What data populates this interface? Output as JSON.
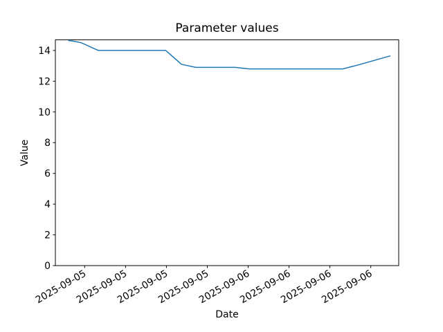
{
  "figure": {
    "background_color": "#ffffff",
    "frame_color": "#000000",
    "text_color": "#000000"
  },
  "chart_data": {
    "type": "line",
    "title": "Parameter values",
    "xlabel": "Date",
    "ylabel": "Value",
    "grid": false,
    "legend": null,
    "x_axis": {
      "epoch": "2025-09-05 00:00",
      "lim_hours": [
        -4.3,
        46.1
      ],
      "ticks": [
        {
          "hour": 0,
          "label": "2025-09-05"
        },
        {
          "hour": 6,
          "label": "2025-09-05"
        },
        {
          "hour": 12,
          "label": "2025-09-05"
        },
        {
          "hour": 18,
          "label": "2025-09-05"
        },
        {
          "hour": 24,
          "label": "2025-09-06"
        },
        {
          "hour": 30,
          "label": "2025-09-06"
        },
        {
          "hour": 36,
          "label": "2025-09-06"
        },
        {
          "hour": 42,
          "label": "2025-09-06"
        }
      ],
      "tick_label_rotation_deg": 30
    },
    "y_axis": {
      "lim": [
        0,
        14.69
      ],
      "ticks": [
        0,
        2,
        4,
        6,
        8,
        10,
        12,
        14
      ]
    },
    "series": [
      {
        "color": "#1f77b4",
        "line_width": 1.5,
        "points": [
          {
            "t_hours": -2.4,
            "time": "2025-09-04 21:36",
            "value": 14.65
          },
          {
            "t_hours": -1.6,
            "time": "2025-09-04 22:24",
            "value": 14.6
          },
          {
            "t_hours": -0.5,
            "time": "2025-09-04 23:30",
            "value": 14.5
          },
          {
            "t_hours": 2.0,
            "time": "2025-09-05 02:00",
            "value": 14.0
          },
          {
            "t_hours": 11.9,
            "time": "2025-09-05 11:54",
            "value": 14.0
          },
          {
            "t_hours": 14.2,
            "time": "2025-09-05 14:12",
            "value": 13.1
          },
          {
            "t_hours": 16.3,
            "time": "2025-09-05 16:18",
            "value": 12.9
          },
          {
            "t_hours": 22.1,
            "time": "2025-09-05 22:06",
            "value": 12.9
          },
          {
            "t_hours": 24.1,
            "time": "2025-09-06 00:06",
            "value": 12.8
          },
          {
            "t_hours": 37.9,
            "time": "2025-09-06 13:54",
            "value": 12.8
          },
          {
            "t_hours": 40.1,
            "time": "2025-09-06 16:06",
            "value": 13.05
          },
          {
            "t_hours": 44.9,
            "time": "2025-09-06 20:54",
            "value": 13.65
          }
        ]
      }
    ]
  }
}
